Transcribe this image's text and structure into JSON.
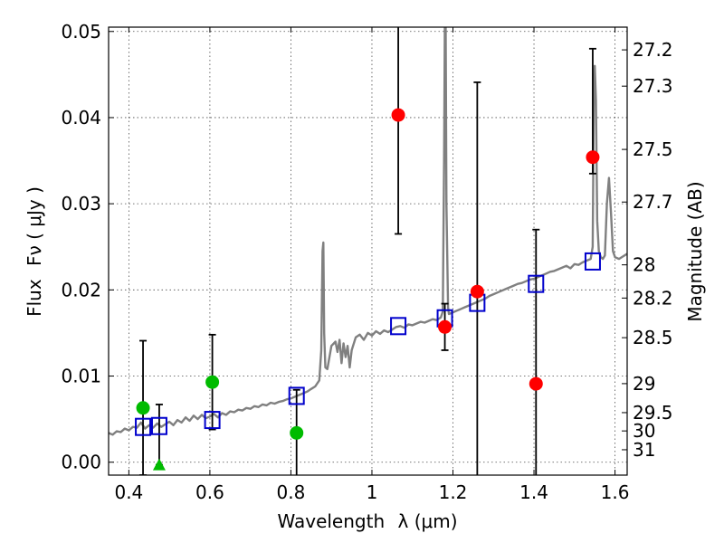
{
  "chart_data": {
    "type": "scatter",
    "xlabel_text": "Wavelength",
    "xlabel_symbol": "λ (μm)",
    "ylabel_text": "Flux",
    "ylabel_symbol": "Fν ( μJy )",
    "ylabel_right": "Magnitude (AB)",
    "xlim": [
      0.35,
      1.63
    ],
    "ylim": [
      -0.0015,
      0.0505
    ],
    "x_ticks": [
      0.4,
      0.6,
      0.8,
      1.0,
      1.2,
      1.4,
      1.6
    ],
    "x_tick_labels": [
      "0.4",
      "0.6",
      "0.8",
      "1",
      "1.2",
      "1.4",
      "1.6"
    ],
    "y_ticks": [
      0.0,
      0.01,
      0.02,
      0.03,
      0.04,
      0.05
    ],
    "y_tick_labels": [
      "0.00",
      "0.01",
      "0.02",
      "0.03",
      "0.04",
      "0.05"
    ],
    "mag_ticks": [
      27.2,
      27.3,
      27.5,
      27.7,
      28,
      28.2,
      28.5,
      29,
      29.5,
      30,
      31
    ],
    "mag_tick_labels": [
      "27.2",
      "27.3",
      "27.5",
      "27.7",
      "28",
      "28.2",
      "28.5",
      "29",
      "29.5",
      "30",
      "31"
    ],
    "grid": true,
    "series": [
      {
        "name": "Observed (green)",
        "color": "#00bb00",
        "marker": "circle",
        "points": [
          {
            "x": 0.435,
            "y": 0.0063,
            "err_low": 0.0078,
            "err_high": 0.0078
          },
          {
            "x": 0.606,
            "y": 0.0093,
            "err_low": 0.0055,
            "err_high": 0.0055
          },
          {
            "x": 0.814,
            "y": 0.0034,
            "err_low": 0.005,
            "err_high": 0.005
          }
        ]
      },
      {
        "name": "Upper limit (green triangle)",
        "color": "#00bb00",
        "marker": "triangle",
        "points": [
          {
            "x": 0.475,
            "y": -0.0003,
            "err_low": 0.0,
            "err_high": 0.007
          }
        ]
      },
      {
        "name": "Observed (red)",
        "color": "#ff0000",
        "marker": "circle",
        "points": [
          {
            "x": 1.065,
            "y": 0.0403,
            "err_low": 0.0138,
            "err_high": 0.012
          },
          {
            "x": 1.18,
            "y": 0.0157,
            "err_low": 0.0027,
            "err_high": 0.0027
          },
          {
            "x": 1.26,
            "y": 0.0198,
            "err_low": 0.023,
            "err_high": 0.0243
          },
          {
            "x": 1.405,
            "y": 0.0091,
            "err_low": 0.012,
            "err_high": 0.0179
          },
          {
            "x": 1.545,
            "y": 0.0354,
            "err_low": 0.0019,
            "err_high": 0.0126
          }
        ]
      },
      {
        "name": "Model band flux",
        "color": "#0000cc",
        "marker": "square",
        "points": [
          {
            "x": 0.435,
            "y": 0.0041
          },
          {
            "x": 0.475,
            "y": 0.0042
          },
          {
            "x": 0.606,
            "y": 0.0049
          },
          {
            "x": 0.814,
            "y": 0.0077
          },
          {
            "x": 1.065,
            "y": 0.0158
          },
          {
            "x": 1.18,
            "y": 0.0167
          },
          {
            "x": 1.26,
            "y": 0.0185
          },
          {
            "x": 1.405,
            "y": 0.0207
          },
          {
            "x": 1.545,
            "y": 0.0233
          }
        ]
      },
      {
        "name": "Model SED",
        "color": "#808080",
        "marker": "line",
        "points": [
          [
            0.35,
            0.0034
          ],
          [
            0.36,
            0.0032
          ],
          [
            0.37,
            0.0036
          ],
          [
            0.38,
            0.0035
          ],
          [
            0.39,
            0.0039
          ],
          [
            0.4,
            0.0037
          ],
          [
            0.41,
            0.0041
          ],
          [
            0.42,
            0.004
          ],
          [
            0.43,
            0.0046
          ],
          [
            0.44,
            0.0039
          ],
          [
            0.45,
            0.0043
          ],
          [
            0.46,
            0.004
          ],
          [
            0.47,
            0.0045
          ],
          [
            0.48,
            0.0041
          ],
          [
            0.49,
            0.0044
          ],
          [
            0.5,
            0.0047
          ],
          [
            0.51,
            0.0043
          ],
          [
            0.52,
            0.0049
          ],
          [
            0.53,
            0.0046
          ],
          [
            0.54,
            0.0052
          ],
          [
            0.55,
            0.0048
          ],
          [
            0.56,
            0.0054
          ],
          [
            0.57,
            0.005
          ],
          [
            0.58,
            0.0055
          ],
          [
            0.59,
            0.0051
          ],
          [
            0.6,
            0.0053
          ],
          [
            0.61,
            0.0056
          ],
          [
            0.62,
            0.0052
          ],
          [
            0.63,
            0.0057
          ],
          [
            0.64,
            0.0055
          ],
          [
            0.65,
            0.0059
          ],
          [
            0.66,
            0.0058
          ],
          [
            0.67,
            0.0061
          ],
          [
            0.68,
            0.006
          ],
          [
            0.69,
            0.0063
          ],
          [
            0.7,
            0.0062
          ],
          [
            0.71,
            0.0065
          ],
          [
            0.72,
            0.0064
          ],
          [
            0.73,
            0.0067
          ],
          [
            0.74,
            0.0066
          ],
          [
            0.75,
            0.0069
          ],
          [
            0.76,
            0.0068
          ],
          [
            0.77,
            0.007
          ],
          [
            0.78,
            0.0071
          ],
          [
            0.79,
            0.0073
          ],
          [
            0.8,
            0.0074
          ],
          [
            0.81,
            0.0076
          ],
          [
            0.82,
            0.0078
          ],
          [
            0.83,
            0.008
          ],
          [
            0.84,
            0.0082
          ],
          [
            0.85,
            0.0085
          ],
          [
            0.86,
            0.0088
          ],
          [
            0.87,
            0.0095
          ],
          [
            0.875,
            0.013
          ],
          [
            0.878,
            0.0245
          ],
          [
            0.88,
            0.0255
          ],
          [
            0.882,
            0.015
          ],
          [
            0.885,
            0.011
          ],
          [
            0.89,
            0.0108
          ],
          [
            0.9,
            0.0135
          ],
          [
            0.91,
            0.014
          ],
          [
            0.915,
            0.0128
          ],
          [
            0.92,
            0.0142
          ],
          [
            0.925,
            0.0115
          ],
          [
            0.93,
            0.0138
          ],
          [
            0.935,
            0.0122
          ],
          [
            0.94,
            0.0135
          ],
          [
            0.945,
            0.011
          ],
          [
            0.95,
            0.013
          ],
          [
            0.96,
            0.0145
          ],
          [
            0.97,
            0.0148
          ],
          [
            0.98,
            0.0142
          ],
          [
            0.99,
            0.015
          ],
          [
            1.0,
            0.0147
          ],
          [
            1.01,
            0.0152
          ],
          [
            1.02,
            0.0149
          ],
          [
            1.03,
            0.0153
          ],
          [
            1.04,
            0.0151
          ],
          [
            1.05,
            0.0154
          ],
          [
            1.06,
            0.0157
          ],
          [
            1.07,
            0.0158
          ],
          [
            1.08,
            0.0156
          ],
          [
            1.09,
            0.016
          ],
          [
            1.1,
            0.0159
          ],
          [
            1.11,
            0.0161
          ],
          [
            1.12,
            0.0163
          ],
          [
            1.13,
            0.0162
          ],
          [
            1.14,
            0.0164
          ],
          [
            1.15,
            0.0166
          ],
          [
            1.16,
            0.0165
          ],
          [
            1.17,
            0.0168
          ],
          [
            1.175,
            0.0175
          ],
          [
            1.178,
            0.035
          ],
          [
            1.18,
            0.052
          ],
          [
            1.182,
            0.052
          ],
          [
            1.184,
            0.03
          ],
          [
            1.188,
            0.018
          ],
          [
            1.19,
            0.0172
          ],
          [
            1.2,
            0.0174
          ],
          [
            1.21,
            0.0176
          ],
          [
            1.22,
            0.0178
          ],
          [
            1.23,
            0.018
          ],
          [
            1.24,
            0.0182
          ],
          [
            1.25,
            0.0184
          ],
          [
            1.26,
            0.0186
          ],
          [
            1.27,
            0.0188
          ],
          [
            1.28,
            0.019
          ],
          [
            1.29,
            0.0193
          ],
          [
            1.3,
            0.0195
          ],
          [
            1.31,
            0.0197
          ],
          [
            1.32,
            0.0199
          ],
          [
            1.33,
            0.0201
          ],
          [
            1.34,
            0.0203
          ],
          [
            1.35,
            0.0205
          ],
          [
            1.36,
            0.0207
          ],
          [
            1.37,
            0.0208
          ],
          [
            1.38,
            0.021
          ],
          [
            1.39,
            0.0212
          ],
          [
            1.4,
            0.0213
          ],
          [
            1.41,
            0.0215
          ],
          [
            1.42,
            0.0217
          ],
          [
            1.43,
            0.0219
          ],
          [
            1.44,
            0.0221
          ],
          [
            1.45,
            0.0222
          ],
          [
            1.46,
            0.0224
          ],
          [
            1.47,
            0.0226
          ],
          [
            1.48,
            0.0228
          ],
          [
            1.49,
            0.0225
          ],
          [
            1.5,
            0.023
          ],
          [
            1.51,
            0.0229
          ],
          [
            1.52,
            0.0232
          ],
          [
            1.53,
            0.0234
          ],
          [
            1.54,
            0.0236
          ],
          [
            1.545,
            0.025
          ],
          [
            1.548,
            0.044
          ],
          [
            1.55,
            0.046
          ],
          [
            1.553,
            0.042
          ],
          [
            1.556,
            0.028
          ],
          [
            1.56,
            0.0245
          ],
          [
            1.565,
            0.0238
          ],
          [
            1.57,
            0.0236
          ],
          [
            1.575,
            0.024
          ],
          [
            1.58,
            0.03
          ],
          [
            1.585,
            0.033
          ],
          [
            1.59,
            0.029
          ],
          [
            1.595,
            0.0245
          ],
          [
            1.6,
            0.0238
          ],
          [
            1.61,
            0.0236
          ],
          [
            1.62,
            0.0239
          ],
          [
            1.63,
            0.0242
          ]
        ]
      }
    ]
  }
}
